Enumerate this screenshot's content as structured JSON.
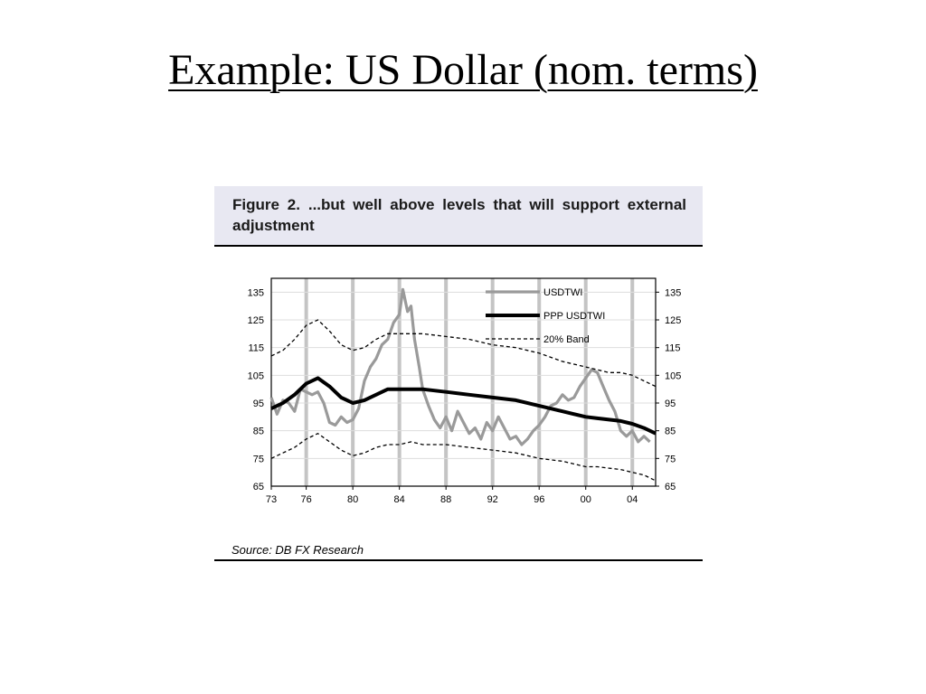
{
  "slide": {
    "title": "Example: US Dollar (nom. terms)"
  },
  "figure": {
    "caption": "Figure 2. ...but well above levels that will support external adjustment",
    "source": "Source: DB FX Research"
  },
  "colors": {
    "usdtwi": "#9a9a9a",
    "ppp": "#000000",
    "band": "#000000",
    "gridline": "#c4c4c4",
    "header_bg": "#e8e8f2"
  },
  "chart_data": {
    "type": "line",
    "title": "",
    "xlabel": "",
    "ylabel": "",
    "xlim": [
      1973,
      2006
    ],
    "ylim": [
      65,
      140
    ],
    "x_ticks": [
      1973,
      1976,
      1980,
      1984,
      1988,
      1992,
      1996,
      2000,
      2004
    ],
    "x_tick_labels": [
      "73",
      "76",
      "80",
      "84",
      "88",
      "92",
      "96",
      "00",
      "04"
    ],
    "y_ticks": [
      65,
      75,
      85,
      95,
      105,
      115,
      125,
      135
    ],
    "y_tick_labels": [
      "65",
      "75",
      "85",
      "95",
      "105",
      "115",
      "125",
      "135"
    ],
    "grid": true,
    "legend_position": "top-right",
    "series": [
      {
        "name": "USDTWI",
        "style": "gray-thick",
        "x": [
          1973,
          1973.5,
          1974,
          1974.5,
          1975,
          1975.5,
          1976,
          1976.5,
          1977,
          1977.5,
          1978,
          1978.5,
          1979,
          1979.5,
          1980,
          1980.5,
          1981,
          1981.5,
          1982,
          1982.5,
          1983,
          1983.5,
          1984,
          1984.3,
          1984.7,
          1985,
          1985.3,
          1985.7,
          1986,
          1986.5,
          1987,
          1987.5,
          1988,
          1988.5,
          1989,
          1989.5,
          1990,
          1990.5,
          1991,
          1991.5,
          1992,
          1992.5,
          1993,
          1993.5,
          1994,
          1994.5,
          1995,
          1995.5,
          1996,
          1996.5,
          1997,
          1997.5,
          1998,
          1998.5,
          1999,
          1999.5,
          2000,
          2000.5,
          2001,
          2001.5,
          2002,
          2002.5,
          2003,
          2003.5,
          2004,
          2004.5,
          2005,
          2005.5
        ],
        "y": [
          97,
          91,
          96,
          95,
          92,
          100,
          99,
          98,
          99,
          95,
          88,
          87,
          90,
          88,
          89,
          93,
          103,
          108,
          111,
          116,
          118,
          124,
          127,
          136,
          128,
          130,
          118,
          108,
          100,
          94,
          89,
          86,
          90,
          85,
          92,
          88,
          84,
          86,
          82,
          88,
          85,
          90,
          86,
          82,
          83,
          80,
          82,
          85,
          87,
          90,
          94,
          95,
          98,
          96,
          97,
          101,
          104,
          107,
          106,
          101,
          96,
          92,
          85,
          83,
          85,
          81,
          83,
          81
        ]
      },
      {
        "name": "PPP USDTWI",
        "style": "black-thick",
        "x": [
          1973,
          1974,
          1975,
          1976,
          1977,
          1978,
          1979,
          1980,
          1981,
          1982,
          1983,
          1984,
          1985,
          1986,
          1988,
          1990,
          1992,
          1994,
          1996,
          1998,
          2000,
          2001,
          2002,
          2003,
          2004,
          2005,
          2006
        ],
        "y": [
          93,
          95,
          98,
          102,
          104,
          101,
          97,
          95,
          96,
          98,
          100,
          100,
          100,
          100,
          99,
          98,
          97,
          96,
          94,
          92,
          90,
          89.5,
          89,
          88.5,
          87.5,
          86,
          84
        ]
      },
      {
        "name": "20% Band",
        "style": "black-dashed",
        "x": [
          1973,
          1974,
          1975,
          1976,
          1977,
          1978,
          1979,
          1980,
          1981,
          1982,
          1983,
          1984,
          1985,
          1986,
          1988,
          1990,
          1992,
          1994,
          1996,
          1998,
          2000,
          2001,
          2002,
          2003,
          2004,
          2005,
          2006
        ],
        "y": [
          112,
          114,
          118,
          123,
          125,
          121,
          116,
          114,
          115,
          118,
          120,
          120,
          120,
          120,
          119,
          118,
          116,
          115,
          113,
          110,
          108,
          107,
          106,
          106,
          105,
          103,
          101
        ]
      },
      {
        "name": "",
        "style": "black-dashed",
        "x": [
          1973,
          1974,
          1975,
          1976,
          1977,
          1978,
          1979,
          1980,
          1981,
          1982,
          1983,
          1984,
          1985,
          1986,
          1988,
          1990,
          1992,
          1994,
          1996,
          1998,
          2000,
          2001,
          2002,
          2003,
          2004,
          2005,
          2006
        ],
        "y": [
          75,
          77,
          79,
          82,
          84,
          81,
          78,
          76,
          77,
          79,
          80,
          80,
          81,
          80,
          80,
          79,
          78,
          77,
          75,
          74,
          72,
          72,
          71.5,
          71,
          70,
          69,
          67
        ]
      }
    ]
  }
}
